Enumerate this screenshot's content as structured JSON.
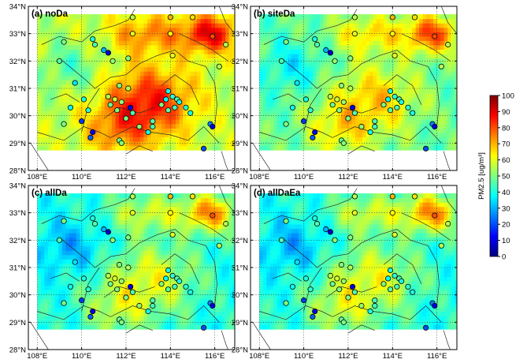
{
  "panels": [
    {
      "label": "(a) noDa",
      "scenario": "noDa"
    },
    {
      "label": "(b) siteDa",
      "scenario": "siteDa"
    },
    {
      "label": "(c) allDa",
      "scenario": "allDa"
    },
    {
      "label": "(d) allDaEa",
      "scenario": "allDaEa"
    }
  ],
  "axes": {
    "lat_ticks": [
      "28°N",
      "29°N",
      "30°N",
      "31°N",
      "32°N",
      "33°N",
      "34°N"
    ],
    "lon_ticks": [
      "108°E",
      "110°E",
      "112°E",
      "114°E",
      "116°E"
    ],
    "lat_range": [
      28,
      34
    ],
    "lon_range": [
      107.6,
      116.9
    ]
  },
  "colorbar": {
    "title": "PM2.5 [ug/m³]",
    "ticks": [
      "0",
      "10",
      "20",
      "30",
      "40",
      "50",
      "60",
      "70",
      "80",
      "90",
      "100"
    ],
    "range": [
      0,
      100
    ],
    "colors": [
      "#00007f",
      "#0000ff",
      "#0080ff",
      "#00ffff",
      "#80ff80",
      "#ffff00",
      "#ff8000",
      "#ff0000",
      "#7f0000"
    ]
  },
  "grid": "dotted",
  "observation_sites": [
    {
      "lon": 114.0,
      "lat": 33.6,
      "v": 70
    },
    {
      "lon": 115.0,
      "lat": 33.6,
      "v": 65
    },
    {
      "lon": 112.3,
      "lat": 33.0,
      "v": 60
    },
    {
      "lon": 114.0,
      "lat": 33.0,
      "v": 62
    },
    {
      "lon": 115.9,
      "lat": 32.9,
      "v": 80
    },
    {
      "lon": 109.2,
      "lat": 32.7,
      "v": 50
    },
    {
      "lon": 110.6,
      "lat": 32.6,
      "v": 45
    },
    {
      "lon": 111.0,
      "lat": 32.4,
      "v": 30
    },
    {
      "lon": 111.2,
      "lat": 32.3,
      "v": 8
    },
    {
      "lon": 110.5,
      "lat": 32.8,
      "v": 40
    },
    {
      "lon": 114.1,
      "lat": 32.2,
      "v": 60
    },
    {
      "lon": 112.1,
      "lat": 32.1,
      "v": 50
    },
    {
      "lon": 111.4,
      "lat": 32.0,
      "v": 52
    },
    {
      "lon": 109.0,
      "lat": 32.0,
      "v": 45
    },
    {
      "lon": 116.5,
      "lat": 32.6,
      "v": 55
    },
    {
      "lon": 116.2,
      "lat": 31.8,
      "v": 55
    },
    {
      "lon": 109.7,
      "lat": 31.2,
      "v": 35
    },
    {
      "lon": 111.7,
      "lat": 31.1,
      "v": 50
    },
    {
      "lon": 112.1,
      "lat": 31.0,
      "v": 55
    },
    {
      "lon": 113.9,
      "lat": 30.9,
      "v": 40
    },
    {
      "lon": 114.1,
      "lat": 30.7,
      "v": 42
    },
    {
      "lon": 114.3,
      "lat": 30.6,
      "v": 45
    },
    {
      "lon": 113.8,
      "lat": 30.6,
      "v": 38
    },
    {
      "lon": 114.4,
      "lat": 30.5,
      "v": 40
    },
    {
      "lon": 113.6,
      "lat": 30.4,
      "v": 50
    },
    {
      "lon": 114.7,
      "lat": 30.3,
      "v": 42
    },
    {
      "lon": 114.2,
      "lat": 30.3,
      "v": 44
    },
    {
      "lon": 113.9,
      "lat": 30.2,
      "v": 46
    },
    {
      "lon": 114.9,
      "lat": 30.1,
      "v": 40
    },
    {
      "lon": 111.2,
      "lat": 30.7,
      "v": 55
    },
    {
      "lon": 111.5,
      "lat": 30.6,
      "v": 58
    },
    {
      "lon": 111.8,
      "lat": 30.5,
      "v": 52
    },
    {
      "lon": 111.3,
      "lat": 30.4,
      "v": 48
    },
    {
      "lon": 111.6,
      "lat": 30.2,
      "v": 50
    },
    {
      "lon": 112.2,
      "lat": 30.3,
      "v": 10
    },
    {
      "lon": 112.3,
      "lat": 30.1,
      "v": 45
    },
    {
      "lon": 112.0,
      "lat": 29.9,
      "v": 50
    },
    {
      "lon": 112.6,
      "lat": 29.6,
      "v": 52
    },
    {
      "lon": 113.2,
      "lat": 29.8,
      "v": 45
    },
    {
      "lon": 110.3,
      "lat": 30.2,
      "v": 42
    },
    {
      "lon": 109.5,
      "lat": 30.3,
      "v": 38
    },
    {
      "lon": 110.1,
      "lat": 30.6,
      "v": 40
    },
    {
      "lon": 109.2,
      "lat": 29.7,
      "v": 50
    },
    {
      "lon": 110.0,
      "lat": 29.8,
      "v": 18
    },
    {
      "lon": 110.5,
      "lat": 29.4,
      "v": 12
    },
    {
      "lon": 110.4,
      "lat": 29.2,
      "v": 22
    },
    {
      "lon": 111.7,
      "lat": 29.1,
      "v": 48
    },
    {
      "lon": 111.8,
      "lat": 29.0,
      "v": 50
    },
    {
      "lon": 113.0,
      "lat": 29.4,
      "v": 40
    },
    {
      "lon": 113.2,
      "lat": 29.6,
      "v": 44
    },
    {
      "lon": 115.8,
      "lat": 29.7,
      "v": 25
    },
    {
      "lon": 115.9,
      "lat": 29.6,
      "v": 10
    },
    {
      "lon": 115.5,
      "lat": 28.8,
      "v": 20
    },
    {
      "lon": 112.3,
      "lat": 33.6,
      "v": 55
    }
  ]
}
